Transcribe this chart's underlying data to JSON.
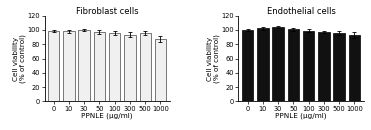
{
  "categories": [
    "0",
    "10",
    "30",
    "50",
    "100",
    "300",
    "500",
    "1000"
  ],
  "fibroblast_values": [
    99,
    98,
    100,
    97,
    96,
    93,
    96,
    87
  ],
  "fibroblast_errors": [
    1.5,
    2.0,
    1.5,
    2.5,
    2.5,
    3.5,
    2.5,
    4.0
  ],
  "endothelial_values": [
    100,
    102,
    104,
    101,
    99,
    97,
    96,
    93
  ],
  "endothelial_errors": [
    1.5,
    2.5,
    2.0,
    2.0,
    2.5,
    2.0,
    2.5,
    4.0
  ],
  "fibroblast_bar_color": "#f0f0f0",
  "fibroblast_edge_color": "#444444",
  "endothelial_bar_color": "#111111",
  "endothelial_edge_color": "#000000",
  "title_fibroblast": "Fibroblast cells",
  "title_endothelial": "Endothelial cells",
  "xlabel": "PPNLE (μg/ml)",
  "ylabel": "Cell viability\n(% of control)",
  "ylim": [
    0,
    120
  ],
  "yticks": [
    0,
    20,
    40,
    60,
    80,
    100,
    120
  ],
  "title_fontsize": 6.0,
  "label_fontsize": 5.2,
  "tick_fontsize": 4.8
}
